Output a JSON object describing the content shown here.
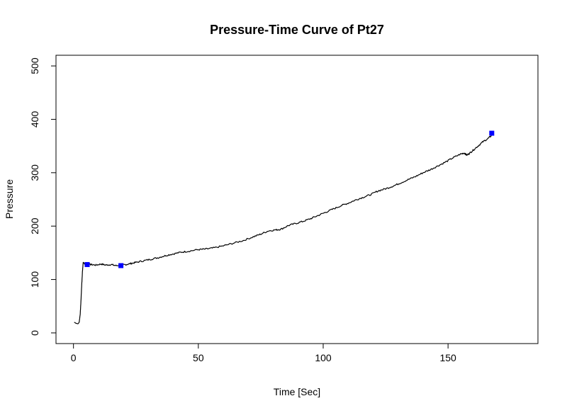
{
  "chart_data": {
    "type": "line",
    "title": "Pressure-Time Curve of Pt27",
    "xlabel": "Time [Sec]",
    "ylabel": "Pressure",
    "xlim": [
      -7,
      186
    ],
    "ylim": [
      -20,
      520
    ],
    "xticks": [
      0,
      50,
      100,
      150
    ],
    "yticks": [
      0,
      100,
      200,
      300,
      400,
      500
    ],
    "grid": false,
    "series": [
      {
        "points": [
          [
            0.3,
            20
          ],
          [
            1.0,
            18
          ],
          [
            1.8,
            17
          ],
          [
            2.3,
            20
          ],
          [
            2.7,
            35
          ],
          [
            3.0,
            60
          ],
          [
            3.3,
            90
          ],
          [
            3.6,
            115
          ],
          [
            3.9,
            132
          ],
          [
            4.3,
            131
          ],
          [
            4.8,
            127
          ],
          [
            5.5,
            129
          ],
          [
            7,
            128
          ],
          [
            9,
            127
          ],
          [
            11,
            129
          ],
          [
            13,
            127
          ],
          [
            15,
            128
          ],
          [
            17,
            126
          ],
          [
            19,
            127
          ],
          [
            21,
            128
          ],
          [
            23,
            130
          ],
          [
            25,
            132
          ],
          [
            28,
            135
          ],
          [
            31,
            138
          ],
          [
            34,
            141
          ],
          [
            37,
            145
          ],
          [
            40,
            148
          ],
          [
            43,
            151
          ],
          [
            46,
            153
          ],
          [
            50,
            156
          ],
          [
            53,
            157
          ],
          [
            56,
            159
          ],
          [
            60,
            163
          ],
          [
            64,
            168
          ],
          [
            68,
            173
          ],
          [
            72,
            180
          ],
          [
            75,
            185
          ],
          [
            78,
            191
          ],
          [
            81,
            193
          ],
          [
            83,
            194
          ],
          [
            86,
            201
          ],
          [
            89,
            205
          ],
          [
            92,
            209
          ],
          [
            95,
            214
          ],
          [
            98,
            220
          ],
          [
            101,
            226
          ],
          [
            104,
            232
          ],
          [
            107,
            238
          ],
          [
            110,
            243
          ],
          [
            113,
            249
          ],
          [
            116,
            254
          ],
          [
            119,
            259
          ],
          [
            122,
            266
          ],
          [
            125,
            270
          ],
          [
            128,
            275
          ],
          [
            131,
            281
          ],
          [
            134,
            287
          ],
          [
            137,
            293
          ],
          [
            140,
            300
          ],
          [
            143,
            306
          ],
          [
            146,
            313
          ],
          [
            149,
            320
          ],
          [
            152,
            328
          ],
          [
            155,
            335
          ],
          [
            156.5,
            337
          ],
          [
            157.5,
            333
          ],
          [
            158.5,
            336
          ],
          [
            160,
            342
          ],
          [
            162,
            350
          ],
          [
            164,
            358
          ],
          [
            166,
            364
          ],
          [
            167.5,
            370
          ]
        ]
      }
    ],
    "markers": [
      {
        "x": 5.5,
        "y": 128
      },
      {
        "x": 19,
        "y": 126
      },
      {
        "x": 167.5,
        "y": 374
      }
    ],
    "marker_color": "#0000ff",
    "line_color": "#000000"
  }
}
